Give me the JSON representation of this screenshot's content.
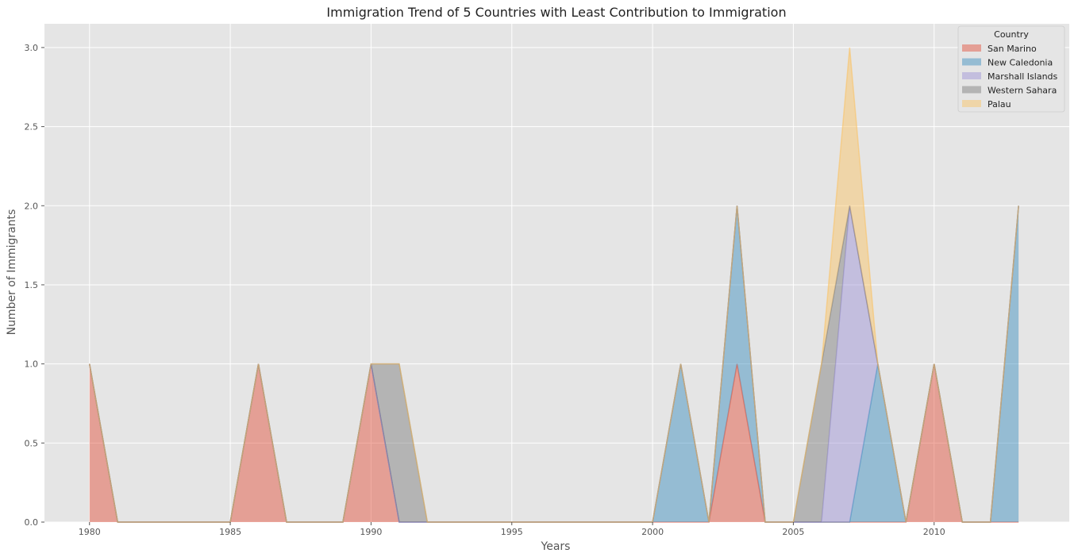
{
  "chart_data": {
    "type": "area",
    "stacked": true,
    "title": "Immigration Trend of 5 Countries with Least Contribution to Immigration",
    "xlabel": "Years",
    "ylabel": "Number of Immigrants",
    "xlim": [
      1978.4,
      2014.8
    ],
    "ylim": [
      0,
      3.15
    ],
    "xticks": [
      1980,
      1985,
      1990,
      1995,
      2000,
      2005,
      2010
    ],
    "yticks": [
      0.0,
      0.5,
      1.0,
      1.5,
      2.0,
      2.5,
      3.0
    ],
    "ytick_labels": [
      "0.0",
      "0.5",
      "1.0",
      "1.5",
      "2.0",
      "2.5",
      "3.0"
    ],
    "grid": true,
    "legend_title": "Country",
    "legend_position": "top-right",
    "x": [
      1980,
      1981,
      1982,
      1983,
      1984,
      1985,
      1986,
      1987,
      1988,
      1989,
      1990,
      1991,
      1992,
      1993,
      1994,
      1995,
      1996,
      1997,
      1998,
      1999,
      2000,
      2001,
      2002,
      2003,
      2004,
      2005,
      2006,
      2007,
      2008,
      2009,
      2010,
      2011,
      2012,
      2013
    ],
    "series": [
      {
        "name": "San Marino",
        "color": "#E24A33",
        "values": [
          1,
          0,
          0,
          0,
          0,
          0,
          1,
          0,
          0,
          0,
          1,
          0,
          0,
          0,
          0,
          0,
          0,
          0,
          0,
          0,
          0,
          0,
          0,
          1,
          0,
          0,
          0,
          0,
          0,
          0,
          1,
          0,
          0,
          0
        ]
      },
      {
        "name": "New Caledonia",
        "color": "#348ABD",
        "values": [
          0,
          0,
          0,
          0,
          0,
          0,
          0,
          0,
          0,
          0,
          0,
          0,
          0,
          0,
          0,
          0,
          0,
          0,
          0,
          0,
          0,
          1,
          0,
          1,
          0,
          0,
          0,
          0,
          1,
          0,
          0,
          0,
          0,
          2
        ]
      },
      {
        "name": "Marshall Islands",
        "color": "#988ED5",
        "values": [
          0,
          0,
          0,
          0,
          0,
          0,
          0,
          0,
          0,
          0,
          0,
          0,
          0,
          0,
          0,
          0,
          0,
          0,
          0,
          0,
          0,
          0,
          0,
          0,
          0,
          0,
          0,
          2,
          0,
          0,
          0,
          0,
          0,
          0
        ]
      },
      {
        "name": "Western Sahara",
        "color": "#777777",
        "values": [
          0,
          0,
          0,
          0,
          0,
          0,
          0,
          0,
          0,
          0,
          0,
          1,
          0,
          0,
          0,
          0,
          0,
          0,
          0,
          0,
          0,
          0,
          0,
          0,
          0,
          0,
          1,
          0,
          0,
          0,
          0,
          0,
          0,
          0
        ]
      },
      {
        "name": "Palau",
        "color": "#FBC15E",
        "values": [
          0,
          0,
          0,
          0,
          0,
          0,
          0,
          0,
          0,
          0,
          0,
          0,
          0,
          0,
          0,
          0,
          0,
          0,
          0,
          0,
          0,
          0,
          0,
          0,
          0,
          0,
          0,
          1,
          0,
          0,
          0,
          0,
          0,
          0
        ]
      }
    ]
  }
}
